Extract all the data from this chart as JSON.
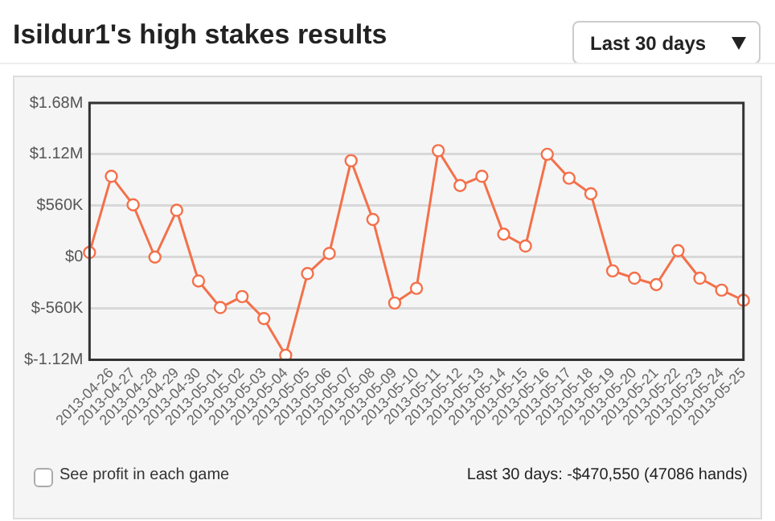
{
  "chart_data": {
    "type": "line",
    "title": "Isildur1's high stakes results",
    "categories": [
      null,
      "2013-04-26",
      "2013-04-27",
      "2013-04-28",
      "2013-04-29",
      "2013-04-30",
      "2013-05-01",
      "2013-05-02",
      "2013-05-03",
      "2013-05-04",
      "2013-05-05",
      "2013-05-06",
      "2013-05-07",
      "2013-05-08",
      "2013-05-09",
      "2013-05-10",
      "2013-05-11",
      "2013-05-12",
      "2013-05-13",
      "2013-05-14",
      "2013-05-15",
      "2013-05-16",
      "2013-05-17",
      "2013-05-18",
      "2013-05-19",
      "2013-05-20",
      "2013-05-21",
      "2013-05-22",
      "2013-05-23",
      "2013-05-24",
      "2013-05-25"
    ],
    "series": [
      {
        "color": "#f4704a",
        "values": [
          50000,
          880000,
          570000,
          0,
          510000,
          -260000,
          -550000,
          -430000,
          -670000,
          -1070000,
          -180000,
          40000,
          1050000,
          410000,
          -500000,
          -340000,
          1160000,
          780000,
          880000,
          250000,
          120000,
          1120000,
          860000,
          690000,
          -150000,
          -230000,
          -300000,
          70000,
          -230000,
          -360000,
          -470550
        ]
      }
    ],
    "ylim": [
      -1120000,
      1680000
    ],
    "yticks": [
      {
        "value": -1120000,
        "label": "$-1.12M"
      },
      {
        "value": -560000,
        "label": "$-560K"
      },
      {
        "value": 0,
        "label": "$0"
      },
      {
        "value": 560000,
        "label": "$560K"
      },
      {
        "value": 1120000,
        "label": "$1.12M"
      },
      {
        "value": 1680000,
        "label": "$1.68M"
      }
    ],
    "grid": "y",
    "marker": "circle",
    "line_style": "solid",
    "legend": false,
    "annotations": [
      "Last 30 days",
      "See profit in each game",
      "Last 30 days: -$470,550 (47086 hands)"
    ]
  }
}
